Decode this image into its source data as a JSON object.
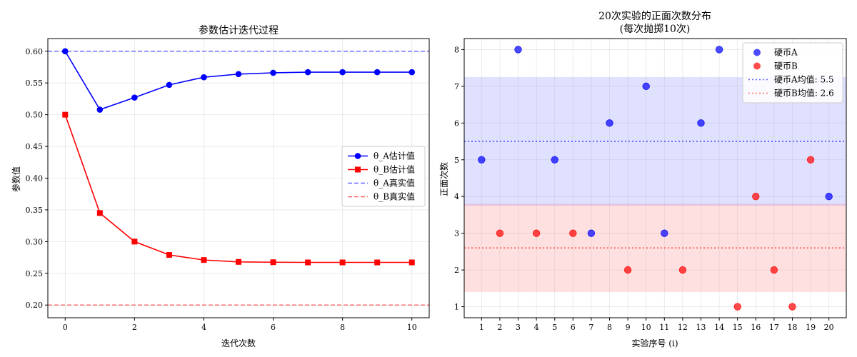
{
  "chart_data": [
    {
      "type": "line",
      "title": "参数估计迭代过程",
      "xlabel": "迭代次数",
      "ylabel": "参数值",
      "xlim": [
        -0.5,
        10.5
      ],
      "ylim": [
        0.18,
        0.62
      ],
      "xticks": [
        0,
        2,
        4,
        6,
        8,
        10
      ],
      "yticks": [
        0.2,
        0.25,
        0.3,
        0.35,
        0.4,
        0.45,
        0.5,
        0.55,
        0.6
      ],
      "grid": true,
      "legend_position": "center-right",
      "x": [
        0,
        1,
        2,
        3,
        4,
        5,
        6,
        7,
        8,
        9,
        10
      ],
      "series": [
        {
          "name": "θ_A估计值",
          "color": "#0000ff",
          "marker": "circle",
          "values": [
            0.6,
            0.508,
            0.527,
            0.547,
            0.559,
            0.564,
            0.566,
            0.567,
            0.567,
            0.567,
            0.567
          ]
        },
        {
          "name": "θ_B估计值",
          "color": "#ff0000",
          "marker": "square",
          "values": [
            0.5,
            0.345,
            0.3,
            0.279,
            0.271,
            0.268,
            0.2675,
            0.2672,
            0.2672,
            0.2672,
            0.2672
          ]
        }
      ],
      "reference_lines": [
        {
          "name": "θ_A真实值",
          "y": 0.6,
          "color": "#0000ff",
          "style": "dashed"
        },
        {
          "name": "θ_B真实值",
          "y": 0.2,
          "color": "#ff0000",
          "style": "dashed"
        }
      ]
    },
    {
      "type": "scatter",
      "title": "20次实验的正面次数分布",
      "subtitle": "(每次抛掷10次)",
      "xlabel": "实验序号 (i)",
      "ylabel": "正面次数",
      "xlim": [
        0.05,
        20.95
      ],
      "ylim": [
        0.7,
        8.3
      ],
      "xticks": [
        1,
        2,
        3,
        4,
        5,
        6,
        7,
        8,
        9,
        10,
        11,
        12,
        13,
        14,
        15,
        16,
        17,
        18,
        19,
        20
      ],
      "yticks": [
        1,
        2,
        3,
        4,
        5,
        6,
        7,
        8
      ],
      "grid": true,
      "legend_position": "top-right",
      "series": [
        {
          "name": "硬币A",
          "color": "#0000ff",
          "x": [
            1,
            3,
            5,
            7,
            8,
            10,
            11,
            13,
            14,
            20
          ],
          "values": [
            5,
            8,
            5,
            3,
            6,
            7,
            3,
            6,
            8,
            4
          ]
        },
        {
          "name": "硬币B",
          "color": "#ff0000",
          "x": [
            2,
            4,
            6,
            9,
            12,
            15,
            16,
            17,
            18,
            19
          ],
          "values": [
            3,
            3,
            3,
            2,
            2,
            1,
            4,
            2,
            1,
            5
          ]
        }
      ],
      "reference_lines": [
        {
          "name": "硬币A均值: 5.5",
          "y": 5.5,
          "color": "#0000ff",
          "style": "dotted"
        },
        {
          "name": "硬币B均值: 2.6",
          "y": 2.6,
          "color": "#ff0000",
          "style": "dotted"
        }
      ],
      "bands": [
        {
          "series": "硬币A",
          "y0": 3.75,
          "y1": 7.25,
          "color": "#0000ff"
        },
        {
          "series": "硬币B",
          "y0": 1.4,
          "y1": 3.8,
          "color": "#ff0000"
        }
      ]
    }
  ]
}
